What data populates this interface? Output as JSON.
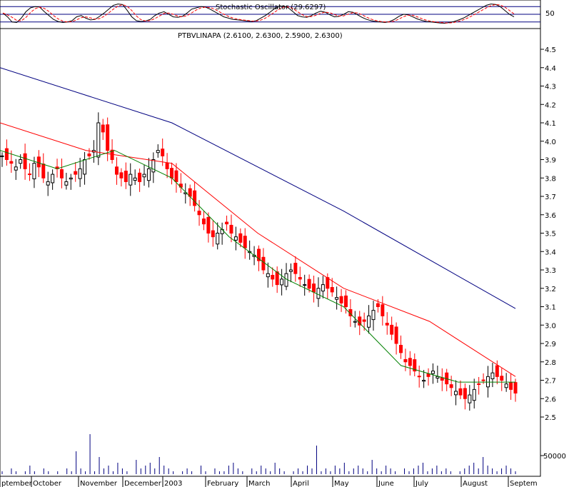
{
  "chart_data": [
    {
      "type": "line",
      "title": "Stochastic Oscillator (29.6297)",
      "y_tick_labels": [
        "50"
      ],
      "series": [
        {
          "name": "%K",
          "color": "#000000",
          "style": "solid"
        },
        {
          "name": "%D",
          "color": "#ff0000",
          "style": "dashed"
        }
      ],
      "k_values": [
        55,
        40,
        20,
        18,
        35,
        60,
        75,
        80,
        78,
        60,
        45,
        30,
        22,
        18,
        20,
        25,
        40,
        45,
        35,
        28,
        30,
        42,
        55,
        70,
        85,
        90,
        88,
        65,
        40,
        25,
        22,
        24,
        30,
        45,
        55,
        60,
        50,
        40,
        38,
        42,
        55,
        70,
        75,
        80,
        78,
        70,
        60,
        50,
        40,
        35,
        30,
        28,
        26,
        24,
        22,
        25,
        35,
        45,
        58,
        72,
        80,
        82,
        75,
        60,
        45,
        40,
        38,
        45,
        55,
        62,
        58,
        48,
        40,
        42,
        50,
        60,
        58,
        48,
        38,
        30,
        25,
        22,
        20,
        18,
        22,
        30,
        42,
        50,
        48,
        40,
        32,
        26,
        22,
        20,
        18,
        16,
        15,
        18,
        22,
        28,
        35,
        45,
        55,
        65,
        75,
        85,
        90,
        88,
        80,
        65,
        50,
        40
      ],
      "reference_lines": [
        20,
        50,
        80
      ],
      "ylim": [
        0,
        100
      ]
    },
    {
      "type": "candlestick",
      "title": "PTBVLINAPA (2.6100, 2.6300, 2.5900, 2.6300)",
      "y_tick_labels": [
        "4.5",
        "4.4",
        "4.3",
        "4.2",
        "4.1",
        "4.0",
        "3.9",
        "3.8",
        "3.7",
        "3.6",
        "3.5",
        "3.4",
        "3.3",
        "3.2",
        "3.1",
        "3.0",
        "2.9",
        "2.8",
        "2.7",
        "2.6",
        "2.5"
      ],
      "ylim": [
        2.42,
        4.56
      ],
      "x_tick_labels": [
        "ptember",
        "October",
        "November",
        "December",
        "2003",
        "February",
        "March",
        "April",
        "May",
        "June",
        "July",
        "August",
        "Septem"
      ],
      "close_values": [
        3.92,
        3.9,
        3.88,
        3.86,
        3.9,
        3.85,
        3.82,
        3.88,
        3.86,
        3.8,
        3.78,
        3.82,
        3.85,
        3.8,
        3.78,
        3.8,
        3.82,
        3.85,
        3.9,
        3.92,
        3.95,
        4.1,
        4.05,
        3.95,
        3.9,
        3.82,
        3.8,
        3.78,
        3.82,
        3.8,
        3.78,
        3.82,
        3.85,
        3.9,
        3.95,
        3.92,
        3.85,
        3.8,
        3.78,
        3.75,
        3.72,
        3.7,
        3.65,
        3.6,
        3.55,
        3.5,
        3.48,
        3.5,
        3.52,
        3.55,
        3.5,
        3.48,
        3.45,
        3.42,
        3.4,
        3.38,
        3.35,
        3.3,
        3.28,
        3.25,
        3.22,
        3.25,
        3.28,
        3.3,
        3.28,
        3.25,
        3.22,
        3.2,
        3.18,
        3.2,
        3.22,
        3.2,
        3.18,
        3.15,
        3.12,
        3.1,
        3.05,
        3.02,
        3.0,
        3.02,
        3.05,
        3.08,
        3.1,
        3.05,
        3.0,
        2.95,
        2.9,
        2.85,
        2.8,
        2.78,
        2.75,
        2.72,
        2.7,
        2.72,
        2.75,
        2.72,
        2.7,
        2.68,
        2.66,
        2.64,
        2.62,
        2.6,
        2.62,
        2.65,
        2.68,
        2.7,
        2.72,
        2.74,
        2.72,
        2.7,
        2.68,
        2.65,
        2.63
      ],
      "series": [
        {
          "name": "MA short",
          "color": "#008000"
        },
        {
          "name": "MA medium",
          "color": "#ff0000"
        },
        {
          "name": "MA long",
          "color": "#000080"
        }
      ],
      "ma_long_values": [
        4.4,
        4.1,
        3.62,
        3.09
      ],
      "ma_medium_values": [
        4.1,
        3.95,
        3.88,
        3.5,
        3.2,
        3.02,
        2.72
      ],
      "ma_short_values": [
        3.95,
        3.85,
        3.95,
        3.8,
        3.48,
        3.25,
        3.1,
        2.78,
        2.69,
        2.69
      ]
    },
    {
      "type": "bar",
      "title": "",
      "y_tick_labels": [
        "50000"
      ],
      "volume_values": [
        1,
        0,
        2,
        1,
        0,
        1,
        3,
        1,
        0,
        2,
        1,
        0,
        1,
        0,
        2,
        1,
        8,
        2,
        1,
        14,
        1,
        6,
        2,
        3,
        1,
        4,
        2,
        1,
        0,
        5,
        2,
        3,
        4,
        2,
        6,
        3,
        2,
        1,
        0,
        1,
        2,
        1,
        0,
        3,
        1,
        0,
        2,
        1,
        1,
        3,
        4,
        2,
        1,
        0,
        2,
        1,
        3,
        2,
        1,
        4,
        2,
        1,
        0,
        1,
        2,
        1,
        3,
        2,
        10,
        1,
        2,
        1,
        3,
        2,
        4,
        1,
        2,
        3,
        2,
        1,
        5,
        2,
        1,
        3,
        2,
        1,
        0,
        2,
        1,
        2,
        3,
        4,
        1,
        2,
        3,
        1,
        2,
        1,
        0,
        1,
        2,
        3,
        4,
        2,
        6,
        3,
        2,
        1,
        2,
        3,
        2,
        1
      ]
    }
  ]
}
